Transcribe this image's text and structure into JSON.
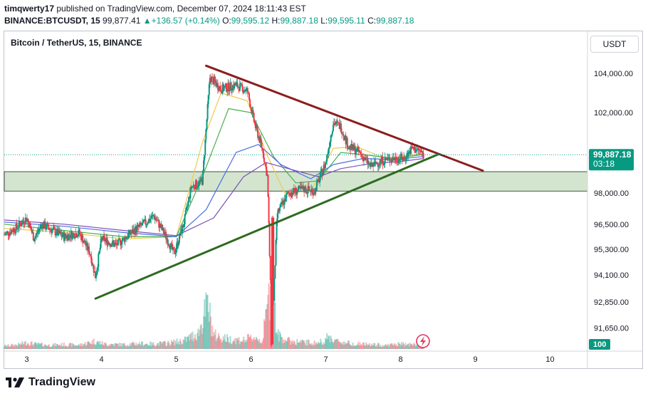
{
  "header": {
    "user": "timqwerty17",
    "published_text": " published on TradingView.com, December 07, 2024 18:11:43 EST",
    "symbol": "BINANCE:BTCUSDT, 15",
    "last": "99,877.41",
    "change": "+136.57 (+0.14%)",
    "o_label": "O:",
    "o": "99,595.12",
    "h_label": "H:",
    "h": "99,887.18",
    "l_label": "L:",
    "l": "99,595.11",
    "c_label": "C:",
    "c": "99,887.18"
  },
  "chart_title": "Bitcoin / TetherUS, 15, BINANCE",
  "currency_button": "USDT",
  "footer": {
    "brand": "TradingView"
  },
  "colors": {
    "up": "#089981",
    "down": "#f23645",
    "resistance_line": "#8b1e1e",
    "support_line": "#2e6b1f",
    "zone_fill": "#c8dfc3",
    "price_tag": "#089981"
  },
  "chart_data": {
    "type": "candlestick",
    "title": "Bitcoin / TetherUS, 15, BINANCE",
    "y_scale": "log",
    "ylim": [
      90700,
      106200
    ],
    "xlim": [
      2.7,
      10.5
    ],
    "yticks": [
      "104,000.00",
      "102,000.00",
      "98,000.00",
      "96,500.00",
      "95,300.00",
      "94,100.00",
      "92,850.00",
      "91,650.00"
    ],
    "ytick_values": [
      104000,
      102000,
      98000,
      96500,
      95300,
      94100,
      92850,
      91650
    ],
    "xticks": [
      "3",
      "4",
      "5",
      "6",
      "7",
      "8",
      "9",
      "10"
    ],
    "xtick_values": [
      3,
      4,
      5,
      6,
      7,
      8,
      9,
      10
    ],
    "last_price_label": "99,887.18",
    "last_price": 99887.18,
    "countdown_label": "03:18",
    "volume_label": "100",
    "price_path": [
      [
        2.7,
        96000
      ],
      [
        2.85,
        96300
      ],
      [
        3.0,
        96800
      ],
      [
        3.1,
        95800
      ],
      [
        3.2,
        96500
      ],
      [
        3.35,
        96200
      ],
      [
        3.5,
        95900
      ],
      [
        3.7,
        96100
      ],
      [
        3.85,
        95100
      ],
      [
        3.92,
        94000
      ],
      [
        4.0,
        95800
      ],
      [
        4.2,
        95500
      ],
      [
        4.4,
        96100
      ],
      [
        4.6,
        96600
      ],
      [
        4.7,
        96900
      ],
      [
        4.85,
        96000
      ],
      [
        4.97,
        95100
      ],
      [
        5.1,
        96500
      ],
      [
        5.2,
        98300
      ],
      [
        5.35,
        98600
      ],
      [
        5.45,
        103800
      ],
      [
        5.6,
        103200
      ],
      [
        5.8,
        103400
      ],
      [
        5.95,
        103100
      ],
      [
        6.05,
        101400
      ],
      [
        6.15,
        100200
      ],
      [
        6.22,
        98800
      ],
      [
        6.28,
        91000
      ],
      [
        6.35,
        97000
      ],
      [
        6.5,
        98000
      ],
      [
        6.7,
        98200
      ],
      [
        6.85,
        98100
      ],
      [
        7.0,
        99500
      ],
      [
        7.1,
        101500
      ],
      [
        7.2,
        101300
      ],
      [
        7.3,
        100300
      ],
      [
        7.45,
        100000
      ],
      [
        7.6,
        99300
      ],
      [
        7.75,
        99600
      ],
      [
        7.9,
        99700
      ],
      [
        8.05,
        99700
      ],
      [
        8.15,
        100200
      ],
      [
        8.25,
        100100
      ],
      [
        8.31,
        99887
      ]
    ],
    "moving_averages": [
      {
        "color": "#f2c94c",
        "values": [
          [
            2.7,
            96300
          ],
          [
            3.5,
            96100
          ],
          [
            4.3,
            95800
          ],
          [
            5.0,
            95900
          ],
          [
            5.35,
            100500
          ],
          [
            5.6,
            103000
          ],
          [
            5.95,
            102600
          ],
          [
            6.2,
            100000
          ],
          [
            6.45,
            98000
          ],
          [
            6.8,
            98100
          ],
          [
            7.1,
            100200
          ],
          [
            7.4,
            100300
          ],
          [
            7.8,
            99700
          ],
          [
            8.31,
            99950
          ]
        ]
      },
      {
        "color": "#4caf50",
        "values": [
          [
            2.7,
            96500
          ],
          [
            3.5,
            96200
          ],
          [
            4.3,
            95900
          ],
          [
            5.0,
            95900
          ],
          [
            5.35,
            98800
          ],
          [
            5.7,
            102200
          ],
          [
            6.0,
            102000
          ],
          [
            6.3,
            99800
          ],
          [
            6.6,
            98500
          ],
          [
            6.9,
            98600
          ],
          [
            7.2,
            100000
          ],
          [
            7.5,
            99900
          ],
          [
            7.9,
            99700
          ],
          [
            8.31,
            99900
          ]
        ]
      },
      {
        "color": "#4a6ee0",
        "values": [
          [
            2.7,
            96600
          ],
          [
            3.5,
            96400
          ],
          [
            4.3,
            96100
          ],
          [
            5.0,
            95900
          ],
          [
            5.4,
            97200
          ],
          [
            5.8,
            100000
          ],
          [
            6.1,
            100400
          ],
          [
            6.4,
            99400
          ],
          [
            6.8,
            98700
          ],
          [
            7.1,
            99400
          ],
          [
            7.5,
            99700
          ],
          [
            7.9,
            99650
          ],
          [
            8.31,
            99800
          ]
        ]
      },
      {
        "color": "#7b4fb8",
        "values": [
          [
            2.7,
            96700
          ],
          [
            3.5,
            96500
          ],
          [
            4.3,
            96200
          ],
          [
            5.0,
            95950
          ],
          [
            5.5,
            96800
          ],
          [
            5.9,
            98800
          ],
          [
            6.2,
            99500
          ],
          [
            6.5,
            99200
          ],
          [
            6.9,
            98800
          ],
          [
            7.2,
            99200
          ],
          [
            7.6,
            99450
          ],
          [
            8.0,
            99550
          ],
          [
            8.31,
            99700
          ]
        ]
      }
    ],
    "volume": [
      [
        2.75,
        6
      ],
      [
        2.9,
        8
      ],
      [
        3.0,
        12
      ],
      [
        3.1,
        9
      ],
      [
        3.3,
        7
      ],
      [
        3.5,
        8
      ],
      [
        3.7,
        7
      ],
      [
        3.9,
        14
      ],
      [
        4.05,
        9
      ],
      [
        4.3,
        8
      ],
      [
        4.5,
        10
      ],
      [
        4.7,
        9
      ],
      [
        4.9,
        11
      ],
      [
        5.1,
        15
      ],
      [
        5.3,
        30
      ],
      [
        5.42,
        82
      ],
      [
        5.5,
        25
      ],
      [
        5.7,
        18
      ],
      [
        5.9,
        16
      ],
      [
        6.05,
        22
      ],
      [
        6.15,
        14
      ],
      [
        6.28,
        130
      ],
      [
        6.35,
        26
      ],
      [
        6.5,
        15
      ],
      [
        6.7,
        12
      ],
      [
        6.9,
        11
      ],
      [
        7.05,
        22
      ],
      [
        7.15,
        14
      ],
      [
        7.35,
        10
      ],
      [
        7.6,
        8
      ],
      [
        7.8,
        7
      ],
      [
        8.0,
        9
      ],
      [
        8.2,
        8
      ],
      [
        8.31,
        6
      ]
    ],
    "trendlines": [
      {
        "name": "",
        "from": [
          5.4,
          104400
        ],
        "to": [
          9.1,
          99100
        ]
      },
      {
        "name": "",
        "from": [
          3.92,
          93000
        ],
        "to": [
          8.5,
          99900
        ]
      }
    ],
    "zone": {
      "low": 98100,
      "high": 99050
    }
  }
}
